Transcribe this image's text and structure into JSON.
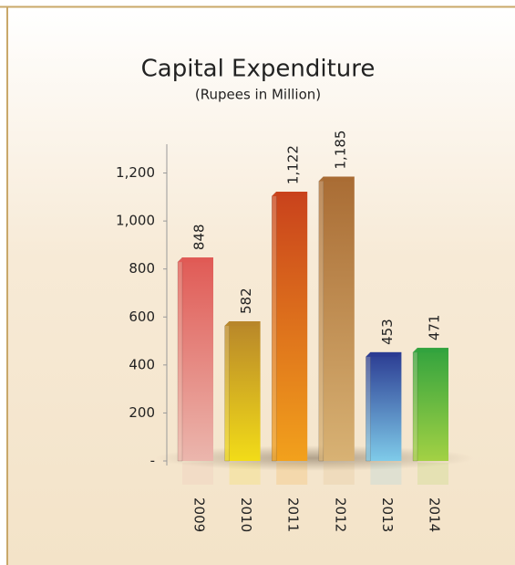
{
  "chart_data": {
    "type": "bar",
    "title": "Capital Expenditure",
    "subtitle": "(Rupees in Million)",
    "categories": [
      "2009",
      "2010",
      "2011",
      "2012",
      "2013",
      "2014"
    ],
    "values": [
      848,
      582,
      1122,
      1185,
      453,
      471
    ],
    "value_labels": [
      "848",
      "582",
      "1,122",
      "1,185",
      "453",
      "471"
    ],
    "colors": [
      "#e05a55",
      "#b8862a",
      "#c9421c",
      "#a96c34",
      "#2b3b92",
      "#32a33e"
    ],
    "bottom_colors": [
      "#ebb6ad",
      "#f2dc18",
      "#f2a11c",
      "#d8b274",
      "#7fcbe9",
      "#a3d144"
    ],
    "ylim": [
      0,
      1320
    ],
    "yticks": [
      {
        "value": 0,
        "label": "-"
      },
      200,
      400,
      600,
      800,
      {
        "value": 1000,
        "label": "1,000"
      },
      {
        "value": 1200,
        "label": "1,200"
      }
    ],
    "grid": false
  }
}
